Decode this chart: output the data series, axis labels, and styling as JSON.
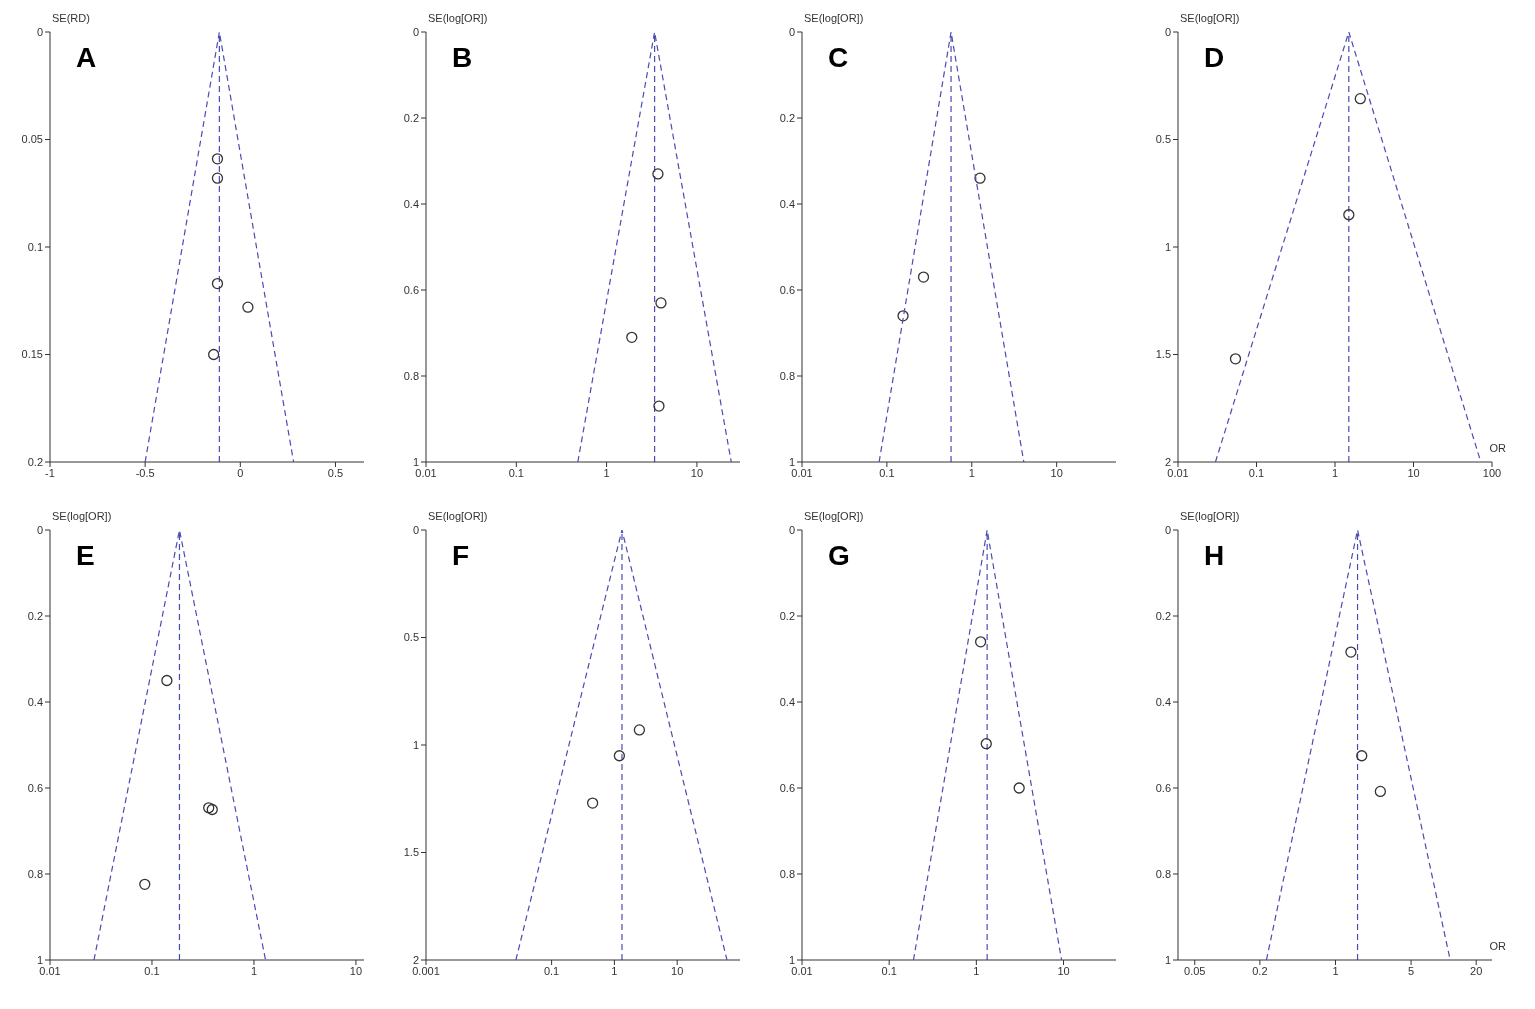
{
  "chart_data": [
    {
      "type": "scatter",
      "title": "A",
      "ylabel": "SE(RD)",
      "xlim": [
        -1,
        0.65
      ],
      "ylim": [
        0.2,
        0
      ],
      "xticks": [
        -1,
        -0.5,
        0,
        0.5
      ],
      "yticks": [
        0,
        0.05,
        0.1,
        0.15,
        0.2
      ],
      "ref_lines": [
        {
          "axis": "x",
          "value": -0.11,
          "color": "#4b4bb4",
          "line_style": "dashed"
        }
      ],
      "series": [
        {
          "marker": "circle",
          "color": "#333333",
          "x": [
            -0.12,
            -0.12,
            -0.12,
            0.04,
            -0.14
          ],
          "values": [
            0.059,
            0.068,
            0.117,
            0.128,
            0.15
          ]
        },
        {
          "type": "line",
          "marker": "none",
          "color": "#4b4bb4",
          "line_style": "dashed",
          "x": [
            -0.5,
            -0.11,
            0.28
          ],
          "values": [
            0.2,
            0,
            0.2
          ]
        }
      ]
    },
    {
      "type": "scatter",
      "title": "B",
      "ylabel": "SE(log[OR])",
      "log": "x",
      "xlim": [
        0.01,
        30
      ],
      "ylim": [
        1,
        0
      ],
      "xticks": [
        0.01,
        0.1,
        1,
        10
      ],
      "yticks": [
        0,
        0.2,
        0.4,
        0.6,
        0.8,
        1
      ],
      "ref_lines": [
        {
          "axis": "x",
          "value": 3.4,
          "color": "#4b4bb4",
          "line_style": "dashed"
        }
      ],
      "series": [
        {
          "marker": "circle",
          "color": "#333333",
          "x": [
            3.7,
            4.0,
            1.9,
            3.8
          ],
          "values": [
            0.33,
            0.63,
            0.71,
            0.87
          ]
        },
        {
          "type": "line",
          "marker": "none",
          "color": "#4b4bb4",
          "line_style": "dashed",
          "x": [
            0.48,
            3.4,
            24
          ],
          "values": [
            1,
            0,
            1
          ]
        }
      ]
    },
    {
      "type": "scatter",
      "title": "C",
      "ylabel": "SE(log[OR])",
      "log": "x",
      "xlim": [
        0.01,
        50
      ],
      "ylim": [
        1,
        0
      ],
      "xticks": [
        0.01,
        0.1,
        1,
        10
      ],
      "yticks": [
        0,
        0.2,
        0.4,
        0.6,
        0.8,
        1
      ],
      "ref_lines": [
        {
          "axis": "x",
          "value": 0.57,
          "color": "#4b4bb4",
          "line_style": "dashed"
        }
      ],
      "series": [
        {
          "marker": "circle",
          "color": "#333333",
          "x": [
            1.25,
            0.27,
            0.155
          ],
          "values": [
            0.34,
            0.57,
            0.66
          ]
        },
        {
          "type": "line",
          "marker": "none",
          "color": "#4b4bb4",
          "line_style": "dashed",
          "x": [
            0.081,
            0.57,
            4.1
          ],
          "values": [
            1,
            0,
            1
          ]
        }
      ]
    },
    {
      "type": "scatter",
      "title": "D",
      "ylabel": "SE(log[OR])",
      "xlabel": "OR",
      "log": "x",
      "xlim": [
        0.01,
        100
      ],
      "ylim": [
        2,
        0
      ],
      "xticks": [
        0.01,
        0.1,
        1,
        10,
        100
      ],
      "yticks": [
        0,
        0.5,
        1,
        1.5,
        2
      ],
      "ref_lines": [
        {
          "axis": "x",
          "value": 1.5,
          "color": "#4b4bb4",
          "line_style": "dashed"
        }
      ],
      "series": [
        {
          "marker": "circle",
          "color": "#333333",
          "x": [
            2.1,
            1.5,
            0.054
          ],
          "values": [
            0.31,
            0.85,
            1.52
          ]
        },
        {
          "type": "line",
          "marker": "none",
          "color": "#4b4bb4",
          "line_style": "dashed",
          "x": [
            0.03,
            1.5,
            72
          ],
          "values": [
            2,
            0,
            2
          ]
        }
      ]
    },
    {
      "type": "scatter",
      "title": "E",
      "ylabel": "SE(log[OR])",
      "log": "x",
      "xlim": [
        0.01,
        12
      ],
      "ylim": [
        1,
        0
      ],
      "xticks": [
        0.01,
        0.1,
        1,
        10
      ],
      "yticks": [
        0,
        0.2,
        0.4,
        0.6,
        0.8,
        1
      ],
      "ref_lines": [
        {
          "axis": "x",
          "value": 0.186,
          "color": "#4b4bb4",
          "line_style": "dashed"
        }
      ],
      "series": [
        {
          "marker": "circle",
          "color": "#333333",
          "x": [
            0.14,
            0.36,
            0.39,
            0.085
          ],
          "values": [
            0.35,
            0.646,
            0.65,
            0.824
          ]
        },
        {
          "type": "line",
          "marker": "none",
          "color": "#4b4bb4",
          "line_style": "dashed",
          "x": [
            0.027,
            0.186,
            1.3
          ],
          "values": [
            1,
            0,
            1
          ]
        }
      ]
    },
    {
      "type": "scatter",
      "title": "F",
      "ylabel": "SE(log[OR])",
      "log": "x",
      "xlim": [
        0.001,
        100
      ],
      "ylim": [
        2,
        0
      ],
      "xticks": [
        0.001,
        0.1,
        1,
        10
      ],
      "yticks": [
        0,
        0.5,
        1,
        1.5,
        2
      ],
      "ref_lines": [
        {
          "axis": "x",
          "value": 1.32,
          "color": "#4b4bb4",
          "line_style": "dashed"
        }
      ],
      "series": [
        {
          "marker": "circle",
          "color": "#333333",
          "x": [
            2.5,
            1.2,
            0.45
          ],
          "values": [
            0.93,
            1.05,
            1.27
          ]
        },
        {
          "type": "line",
          "marker": "none",
          "color": "#4b4bb4",
          "line_style": "dashed",
          "x": [
            0.027,
            1.32,
            62
          ],
          "values": [
            2,
            0,
            2
          ]
        }
      ]
    },
    {
      "type": "scatter",
      "title": "G",
      "ylabel": "SE(log[OR])",
      "log": "x",
      "xlim": [
        0.01,
        40
      ],
      "ylim": [
        1,
        0
      ],
      "xticks": [
        0.01,
        0.1,
        1,
        10
      ],
      "yticks": [
        0,
        0.2,
        0.4,
        0.6,
        0.8,
        1
      ],
      "ref_lines": [
        {
          "axis": "x",
          "value": 1.33,
          "color": "#4b4bb4",
          "line_style": "dashed"
        }
      ],
      "series": [
        {
          "marker": "circle",
          "color": "#333333",
          "x": [
            1.12,
            1.3,
            3.1
          ],
          "values": [
            0.26,
            0.497,
            0.6
          ]
        },
        {
          "type": "line",
          "marker": "none",
          "color": "#4b4bb4",
          "line_style": "dashed",
          "x": [
            0.19,
            1.33,
            9.5
          ],
          "values": [
            1,
            0,
            1
          ]
        }
      ]
    },
    {
      "type": "scatter",
      "title": "H",
      "ylabel": "SE(log[OR])",
      "xlabel": "OR",
      "log": "x",
      "xlim": [
        0.035,
        28
      ],
      "ylim": [
        1,
        0
      ],
      "xticks": [
        0.05,
        0.2,
        1,
        5,
        20
      ],
      "yticks": [
        0,
        0.2,
        0.4,
        0.6,
        0.8,
        1
      ],
      "ref_lines": [
        {
          "axis": "x",
          "value": 1.6,
          "color": "#4b4bb4",
          "line_style": "dashed"
        }
      ],
      "series": [
        {
          "marker": "circle",
          "color": "#333333",
          "x": [
            1.39,
            1.75,
            2.6
          ],
          "values": [
            0.284,
            0.525,
            0.608
          ]
        },
        {
          "type": "line",
          "marker": "none",
          "color": "#4b4bb4",
          "line_style": "dashed",
          "x": [
            0.23,
            1.6,
            11.5
          ],
          "values": [
            1,
            0,
            1
          ]
        }
      ]
    }
  ]
}
